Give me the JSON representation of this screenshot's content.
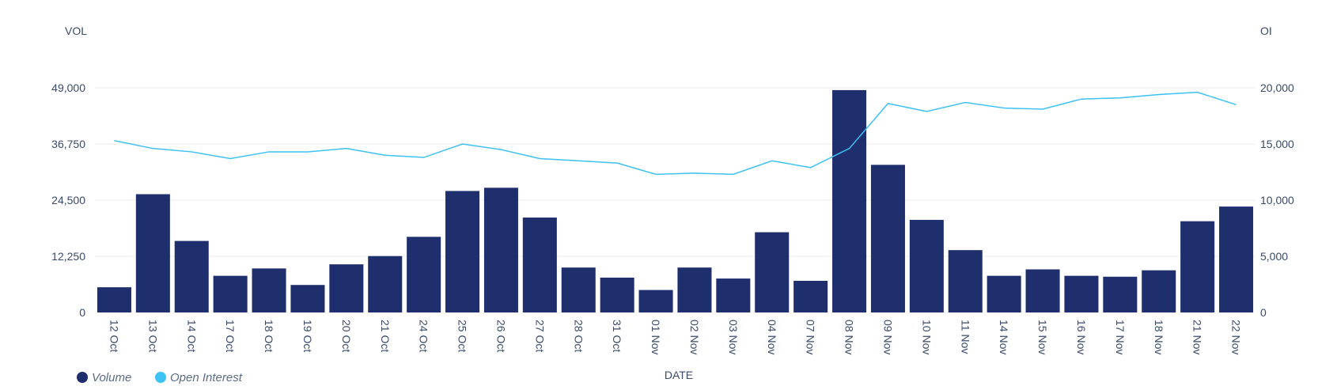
{
  "chart_data": {
    "type": "bar",
    "categories": [
      "12 Oct",
      "13 Oct",
      "14 Oct",
      "17 Oct",
      "18 Oct",
      "19 Oct",
      "20 Oct",
      "21 Oct",
      "24 Oct",
      "25 Oct",
      "26 Oct",
      "27 Oct",
      "28 Oct",
      "31 Oct",
      "01 Nov",
      "02 Nov",
      "03 Nov",
      "04 Nov",
      "07 Nov",
      "08 Nov",
      "09 Nov",
      "10 Nov",
      "11 Nov",
      "14 Nov",
      "15 Nov",
      "16 Nov",
      "17 Nov",
      "18 Nov",
      "21 Nov",
      "22 Nov"
    ],
    "series": [
      {
        "name": "Volume",
        "type": "bar",
        "axis": "left",
        "color": "#1f2f6e",
        "values": [
          5500,
          25800,
          15600,
          8000,
          9600,
          6000,
          10500,
          12300,
          16500,
          26500,
          27200,
          20700,
          9800,
          7600,
          4900,
          9800,
          7400,
          17500,
          6900,
          48500,
          32200,
          20200,
          13600,
          8000,
          9400,
          8000,
          7800,
          9200,
          19900,
          23100
        ]
      },
      {
        "name": "Open Interest",
        "type": "line",
        "axis": "right",
        "color": "#3ec1f3",
        "values": [
          15300,
          14600,
          14300,
          13700,
          14300,
          14300,
          14600,
          14000,
          13800,
          15000,
          14500,
          13700,
          13500,
          13300,
          12300,
          12400,
          12300,
          13500,
          12900,
          14600,
          18600,
          17900,
          18700,
          18200,
          18100,
          19000,
          19100,
          19400,
          19600,
          18500
        ]
      }
    ],
    "xlabel": "DATE",
    "ylabel": "VOL",
    "y2label": "OI",
    "ylim": [
      0,
      49000
    ],
    "y2lim": [
      0,
      20000
    ],
    "yticks": [
      "0",
      "12,250",
      "24,500",
      "36,750",
      "49,000"
    ],
    "yticks_values": [
      0,
      12250,
      24500,
      36750,
      49000
    ],
    "y2ticks": [
      "0",
      "5,000",
      "10,000",
      "15,000",
      "20,000"
    ],
    "y2ticks_values": [
      0,
      5000,
      10000,
      15000,
      20000
    ],
    "grid": true,
    "legend": "bottom-left"
  }
}
